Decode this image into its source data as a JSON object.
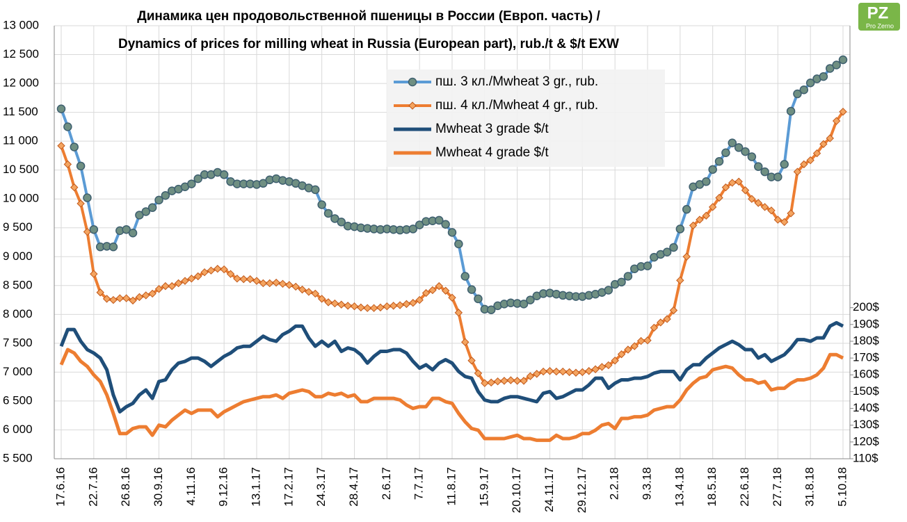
{
  "chart_data": {
    "type": "line",
    "title": "Динамика цен продовольственной пшеницы в России (Европ. часть) /",
    "subtitle": "Dynamics of prices for milling wheat in Russia (European part), rub./t & $/t EXW",
    "logo": {
      "mark": "PZ",
      "name": "Pro Zerno"
    },
    "categories": [
      "17.6.16",
      null,
      null,
      null,
      null,
      "22.7.16",
      null,
      null,
      null,
      null,
      "26.8.16",
      null,
      null,
      null,
      null,
      "30.9.16",
      null,
      null,
      null,
      null,
      "4.11.16",
      null,
      null,
      null,
      null,
      "9.12.16",
      null,
      null,
      null,
      null,
      "13.1.17",
      null,
      null,
      null,
      null,
      "17.2.17",
      null,
      null,
      null,
      null,
      "24.3.17",
      null,
      null,
      null,
      null,
      "28.4.17",
      null,
      null,
      null,
      null,
      "2.6.17",
      null,
      null,
      null,
      null,
      "7.7.17",
      null,
      null,
      null,
      null,
      "11.8.17",
      null,
      null,
      null,
      null,
      "15.9.17",
      null,
      null,
      null,
      null,
      "20.10.17",
      null,
      null,
      null,
      null,
      "24.11.17",
      null,
      null,
      null,
      null,
      "29.12.17",
      null,
      null,
      null,
      null,
      "2.2.18",
      null,
      null,
      null,
      null,
      "9.3.18",
      null,
      null,
      null,
      null,
      "13.4.18",
      null,
      null,
      null,
      null,
      "18.5.18",
      null,
      null,
      null,
      null,
      "22.6.18",
      null,
      null,
      null,
      null,
      "27.7.18",
      null,
      null,
      null,
      null,
      "31.8.18",
      null,
      null,
      null,
      null,
      "5.10.18"
    ],
    "series": [
      {
        "name": "пш. 3 кл./Mwheat 3 gr., rub.",
        "color": "#5b9bd5",
        "marker": "circle",
        "values": [
          11560,
          11250,
          10900,
          10570,
          10020,
          9470,
          9170,
          9180,
          9170,
          9450,
          9470,
          9410,
          9720,
          9780,
          9850,
          9980,
          10060,
          10140,
          10170,
          10210,
          10260,
          10350,
          10420,
          10420,
          10460,
          10420,
          10300,
          10260,
          10260,
          10260,
          10250,
          10270,
          10330,
          10350,
          10320,
          10300,
          10270,
          10230,
          10190,
          10160,
          9900,
          9750,
          9660,
          9600,
          9530,
          9520,
          9500,
          9490,
          9480,
          9470,
          9480,
          9470,
          9460,
          9470,
          9480,
          9550,
          9610,
          9620,
          9630,
          9560,
          9420,
          9220,
          8660,
          8430,
          8270,
          8090,
          8080,
          8150,
          8180,
          8200,
          8190,
          8180,
          8250,
          8320,
          8360,
          8370,
          8350,
          8330,
          8320,
          8310,
          8310,
          8330,
          8350,
          8380,
          8420,
          8520,
          8560,
          8660,
          8790,
          8830,
          8840,
          8990,
          9040,
          9080,
          9160,
          9480,
          9820,
          10210,
          10250,
          10300,
          10510,
          10650,
          10800,
          10970,
          10890,
          10820,
          10730,
          10560,
          10470,
          10380,
          10380,
          10600,
          11520,
          11820,
          11890,
          12010,
          12080,
          12120,
          12260,
          12320,
          12410
        ]
      },
      {
        "name": "пш. 4 кл./Mwheat 4 gr., rub.",
        "color": "#ed7d31",
        "marker": "diamond",
        "values": [
          10920,
          10600,
          10200,
          9920,
          9430,
          8700,
          8380,
          8270,
          8250,
          8280,
          8280,
          8240,
          8300,
          8330,
          8360,
          8440,
          8490,
          8490,
          8540,
          8580,
          8620,
          8660,
          8730,
          8760,
          8790,
          8780,
          8700,
          8620,
          8610,
          8610,
          8580,
          8540,
          8540,
          8550,
          8530,
          8510,
          8480,
          8430,
          8390,
          8360,
          8270,
          8210,
          8190,
          8170,
          8150,
          8140,
          8120,
          8110,
          8110,
          8120,
          8140,
          8150,
          8160,
          8180,
          8200,
          8250,
          8370,
          8420,
          8490,
          8410,
          8290,
          8030,
          7520,
          7200,
          6980,
          6810,
          6820,
          6840,
          6850,
          6860,
          6850,
          6850,
          6930,
          6970,
          7010,
          7020,
          7010,
          7010,
          7000,
          6990,
          7000,
          7020,
          7050,
          7090,
          7120,
          7200,
          7310,
          7390,
          7450,
          7540,
          7550,
          7770,
          7860,
          7920,
          8070,
          8590,
          9000,
          9540,
          9640,
          9710,
          9860,
          10020,
          10200,
          10280,
          10300,
          10150,
          10000,
          9930,
          9860,
          9800,
          9640,
          9600,
          9750,
          10470,
          10600,
          10670,
          10790,
          10950,
          11050,
          11350,
          11510
        ]
      },
      {
        "name": "Mwheat 3 grade $/t",
        "color": "#1f4e79",
        "axis": "y2",
        "values": [
          177,
          187,
          187,
          180,
          175,
          173,
          170,
          163,
          148,
          138,
          141,
          143,
          148,
          151,
          146,
          156,
          157,
          163,
          167,
          168,
          170,
          170,
          168,
          165,
          168,
          171,
          173,
          176,
          177,
          177,
          180,
          183,
          181,
          180,
          184,
          186,
          189,
          189,
          182,
          177,
          180,
          177,
          180,
          174,
          176,
          175,
          172,
          167,
          171,
          174,
          174,
          175,
          175,
          173,
          168,
          164,
          166,
          163,
          167,
          169,
          167,
          162,
          159,
          158,
          150,
          145,
          144,
          144,
          146,
          147,
          147,
          146,
          145,
          144,
          149,
          150,
          146,
          147,
          149,
          151,
          151,
          154,
          158,
          158,
          152,
          155,
          157,
          157,
          158,
          158,
          159,
          161,
          162,
          162,
          162,
          157,
          163,
          166,
          166,
          170,
          173,
          176,
          178,
          180,
          178,
          175,
          175,
          170,
          172,
          168,
          170,
          172,
          176,
          181,
          181,
          180,
          182,
          182,
          189,
          191,
          189
        ]
      },
      {
        "name": "Mwheat 4 grade $/t",
        "color": "#ed7d31",
        "axis": "y2",
        "values": [
          166,
          175,
          173,
          168,
          165,
          160,
          156,
          148,
          137,
          125,
          125,
          128,
          129,
          129,
          124,
          130,
          129,
          133,
          136,
          139,
          137,
          139,
          139,
          139,
          135,
          138,
          140,
          142,
          144,
          145,
          146,
          147,
          147,
          148,
          146,
          149,
          150,
          151,
          150,
          147,
          147,
          149,
          148,
          149,
          147,
          148,
          144,
          144,
          146,
          146,
          146,
          146,
          145,
          142,
          140,
          141,
          141,
          146,
          146,
          144,
          143,
          137,
          132,
          128,
          127,
          122,
          122,
          122,
          122,
          123,
          124,
          122,
          122,
          121,
          121,
          121,
          124,
          122,
          122,
          123,
          125,
          125,
          127,
          130,
          131,
          128,
          134,
          134,
          135,
          135,
          136,
          139,
          140,
          141,
          141,
          145,
          151,
          155,
          158,
          159,
          163,
          164,
          165,
          164,
          160,
          157,
          157,
          155,
          156,
          151,
          152,
          152,
          155,
          157,
          157,
          158,
          160,
          164,
          172,
          172,
          170
        ]
      }
    ],
    "ylim": [
      5500,
      13000
    ],
    "yticks": [
      {
        "value": 5500,
        "label": "5 500"
      },
      {
        "value": 6000,
        "label": "6 000"
      },
      {
        "value": 6500,
        "label": "6 500"
      },
      {
        "value": 7000,
        "label": "7 000"
      },
      {
        "value": 7500,
        "label": "7 500"
      },
      {
        "value": 8000,
        "label": "8 000"
      },
      {
        "value": 8500,
        "label": "8 500"
      },
      {
        "value": 9000,
        "label": "9 000"
      },
      {
        "value": 9500,
        "label": "9 500"
      },
      {
        "value": 10000,
        "label": "10 000"
      },
      {
        "value": 10500,
        "label": "10 500"
      },
      {
        "value": 11000,
        "label": "11 000"
      },
      {
        "value": 11500,
        "label": "11 500"
      },
      {
        "value": 12000,
        "label": "12 000"
      },
      {
        "value": 12500,
        "label": "12 500"
      },
      {
        "value": 13000,
        "label": "13 000"
      }
    ],
    "y2lim": [
      110,
      368
    ],
    "y2ticks": [
      {
        "value": 110,
        "label": "110$"
      },
      {
        "value": 120,
        "label": "120$"
      },
      {
        "value": 130,
        "label": "130$"
      },
      {
        "value": 140,
        "label": "140$"
      },
      {
        "value": 150,
        "label": "150$"
      },
      {
        "value": 160,
        "label": "160$"
      },
      {
        "value": 170,
        "label": "170$"
      },
      {
        "value": 180,
        "label": "180$"
      },
      {
        "value": 190,
        "label": "190$"
      },
      {
        "value": 200,
        "label": "200$"
      }
    ],
    "grid": true,
    "legend": "top"
  }
}
